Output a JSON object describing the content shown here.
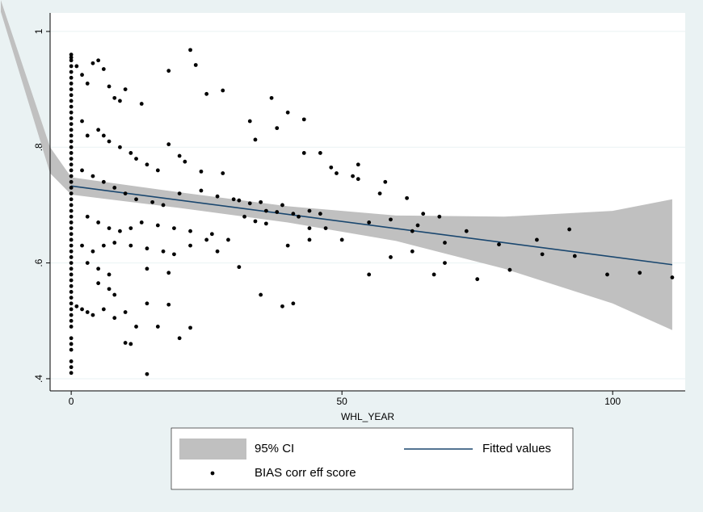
{
  "chart_data": {
    "type": "scatter",
    "xlabel": "WHL_YEAR",
    "xlim": [
      -3.9,
      113.4
    ],
    "ylim": [
      0.379,
      1.032
    ],
    "xticks": [
      0,
      50,
      100
    ],
    "yticks": [
      {
        "value": 0.4,
        "label": ".4"
      },
      {
        "value": 0.6,
        "label": ".6"
      },
      {
        "value": 0.8,
        "label": ".8"
      },
      1
    ],
    "grid": true,
    "legend": "bottom",
    "series": [
      {
        "name": "95% CI",
        "type": "band",
        "color": "#c0c0c0",
        "x": [
          -13,
          -3.9,
          0,
          20,
          40,
          60,
          80,
          100,
          111
        ],
        "upper": [
          1.054,
          0.8,
          0.748,
          0.722,
          0.698,
          0.682,
          0.68,
          0.69,
          0.71
        ],
        "lower": [
          1.034,
          0.755,
          0.718,
          0.695,
          0.67,
          0.638,
          0.59,
          0.53,
          0.484
        ]
      },
      {
        "name": "Fitted values",
        "type": "line",
        "color": "#1a476f",
        "x": [
          0,
          111
        ],
        "values": [
          0.733,
          0.597
        ]
      },
      {
        "name": "BIAS corr eff score",
        "type": "points",
        "color": "#000000",
        "x": [
          0,
          0,
          0,
          0,
          0,
          0,
          0,
          0,
          0,
          0,
          0,
          0,
          0,
          0,
          0,
          0,
          0,
          0,
          0,
          0,
          0,
          0,
          0,
          0,
          0,
          0,
          0,
          0,
          0,
          0,
          0,
          0,
          0,
          0,
          0,
          0,
          0,
          0,
          0,
          0,
          0,
          0,
          0,
          0,
          0,
          0,
          0,
          0,
          0,
          0,
          0,
          0,
          0,
          0,
          0,
          1,
          2,
          3,
          4,
          5,
          6,
          7,
          8,
          9,
          10,
          13,
          22,
          23,
          18,
          25,
          28,
          33,
          37,
          38,
          40,
          43,
          34,
          2,
          3,
          5,
          6,
          7,
          9,
          11,
          12,
          14,
          16,
          18,
          20,
          21,
          24,
          28,
          43,
          46,
          48,
          49,
          52,
          53,
          53,
          57,
          58,
          62,
          2,
          4,
          6,
          8,
          10,
          12,
          15,
          17,
          20,
          24,
          27,
          30,
          31,
          33,
          35,
          36,
          38,
          39,
          41,
          42,
          44,
          46,
          3,
          5,
          7,
          9,
          11,
          13,
          16,
          19,
          22,
          26,
          29,
          32,
          34,
          36,
          44,
          47,
          50,
          55,
          59,
          63,
          64,
          65,
          68,
          69,
          73,
          79,
          86,
          87,
          92,
          93,
          2,
          4,
          6,
          8,
          11,
          14,
          17,
          19,
          22,
          25,
          27,
          31,
          40,
          44,
          3,
          5,
          7,
          14,
          18,
          59,
          63,
          69,
          81,
          75,
          55,
          67,
          99,
          105,
          111,
          5,
          7,
          8,
          14,
          18,
          35,
          39,
          41,
          2,
          4,
          6,
          8,
          10,
          12,
          16,
          20,
          22,
          10,
          11,
          14,
          1,
          3
        ],
        "values": [
          0.96,
          0.955,
          0.95,
          0.94,
          0.93,
          0.92,
          0.91,
          0.9,
          0.89,
          0.88,
          0.87,
          0.86,
          0.85,
          0.84,
          0.83,
          0.82,
          0.81,
          0.8,
          0.79,
          0.78,
          0.77,
          0.76,
          0.75,
          0.74,
          0.73,
          0.72,
          0.71,
          0.7,
          0.69,
          0.68,
          0.67,
          0.66,
          0.65,
          0.64,
          0.63,
          0.62,
          0.61,
          0.6,
          0.59,
          0.58,
          0.57,
          0.56,
          0.55,
          0.54,
          0.53,
          0.52,
          0.51,
          0.5,
          0.49,
          0.47,
          0.46,
          0.45,
          0.43,
          0.42,
          0.41,
          0.94,
          0.925,
          0.91,
          0.945,
          0.95,
          0.935,
          0.905,
          0.885,
          0.88,
          0.9,
          0.875,
          0.968,
          0.942,
          0.932,
          0.892,
          0.898,
          0.845,
          0.885,
          0.833,
          0.86,
          0.848,
          0.813,
          0.845,
          0.82,
          0.83,
          0.82,
          0.81,
          0.8,
          0.79,
          0.78,
          0.77,
          0.76,
          0.805,
          0.785,
          0.775,
          0.758,
          0.755,
          0.79,
          0.79,
          0.765,
          0.755,
          0.75,
          0.77,
          0.745,
          0.72,
          0.74,
          0.712,
          0.76,
          0.75,
          0.74,
          0.73,
          0.72,
          0.71,
          0.705,
          0.7,
          0.72,
          0.725,
          0.715,
          0.71,
          0.708,
          0.703,
          0.705,
          0.69,
          0.688,
          0.7,
          0.685,
          0.68,
          0.69,
          0.685,
          0.68,
          0.67,
          0.66,
          0.655,
          0.66,
          0.67,
          0.665,
          0.66,
          0.655,
          0.65,
          0.64,
          0.68,
          0.672,
          0.668,
          0.66,
          0.66,
          0.64,
          0.67,
          0.675,
          0.655,
          0.665,
          0.685,
          0.68,
          0.635,
          0.655,
          0.632,
          0.64,
          0.615,
          0.658,
          0.612,
          0.63,
          0.62,
          0.63,
          0.635,
          0.63,
          0.625,
          0.62,
          0.615,
          0.63,
          0.64,
          0.62,
          0.593,
          0.63,
          0.64,
          0.6,
          0.59,
          0.58,
          0.59,
          0.583,
          0.61,
          0.62,
          0.6,
          0.588,
          0.572,
          0.58,
          0.58,
          0.58,
          0.583,
          0.575,
          0.565,
          0.555,
          0.545,
          0.53,
          0.528,
          0.545,
          0.525,
          0.53,
          0.52,
          0.51,
          0.52,
          0.505,
          0.515,
          0.49,
          0.49,
          0.47,
          0.488,
          0.462,
          0.46,
          0.408,
          0.525,
          0.515
        ]
      }
    ]
  }
}
